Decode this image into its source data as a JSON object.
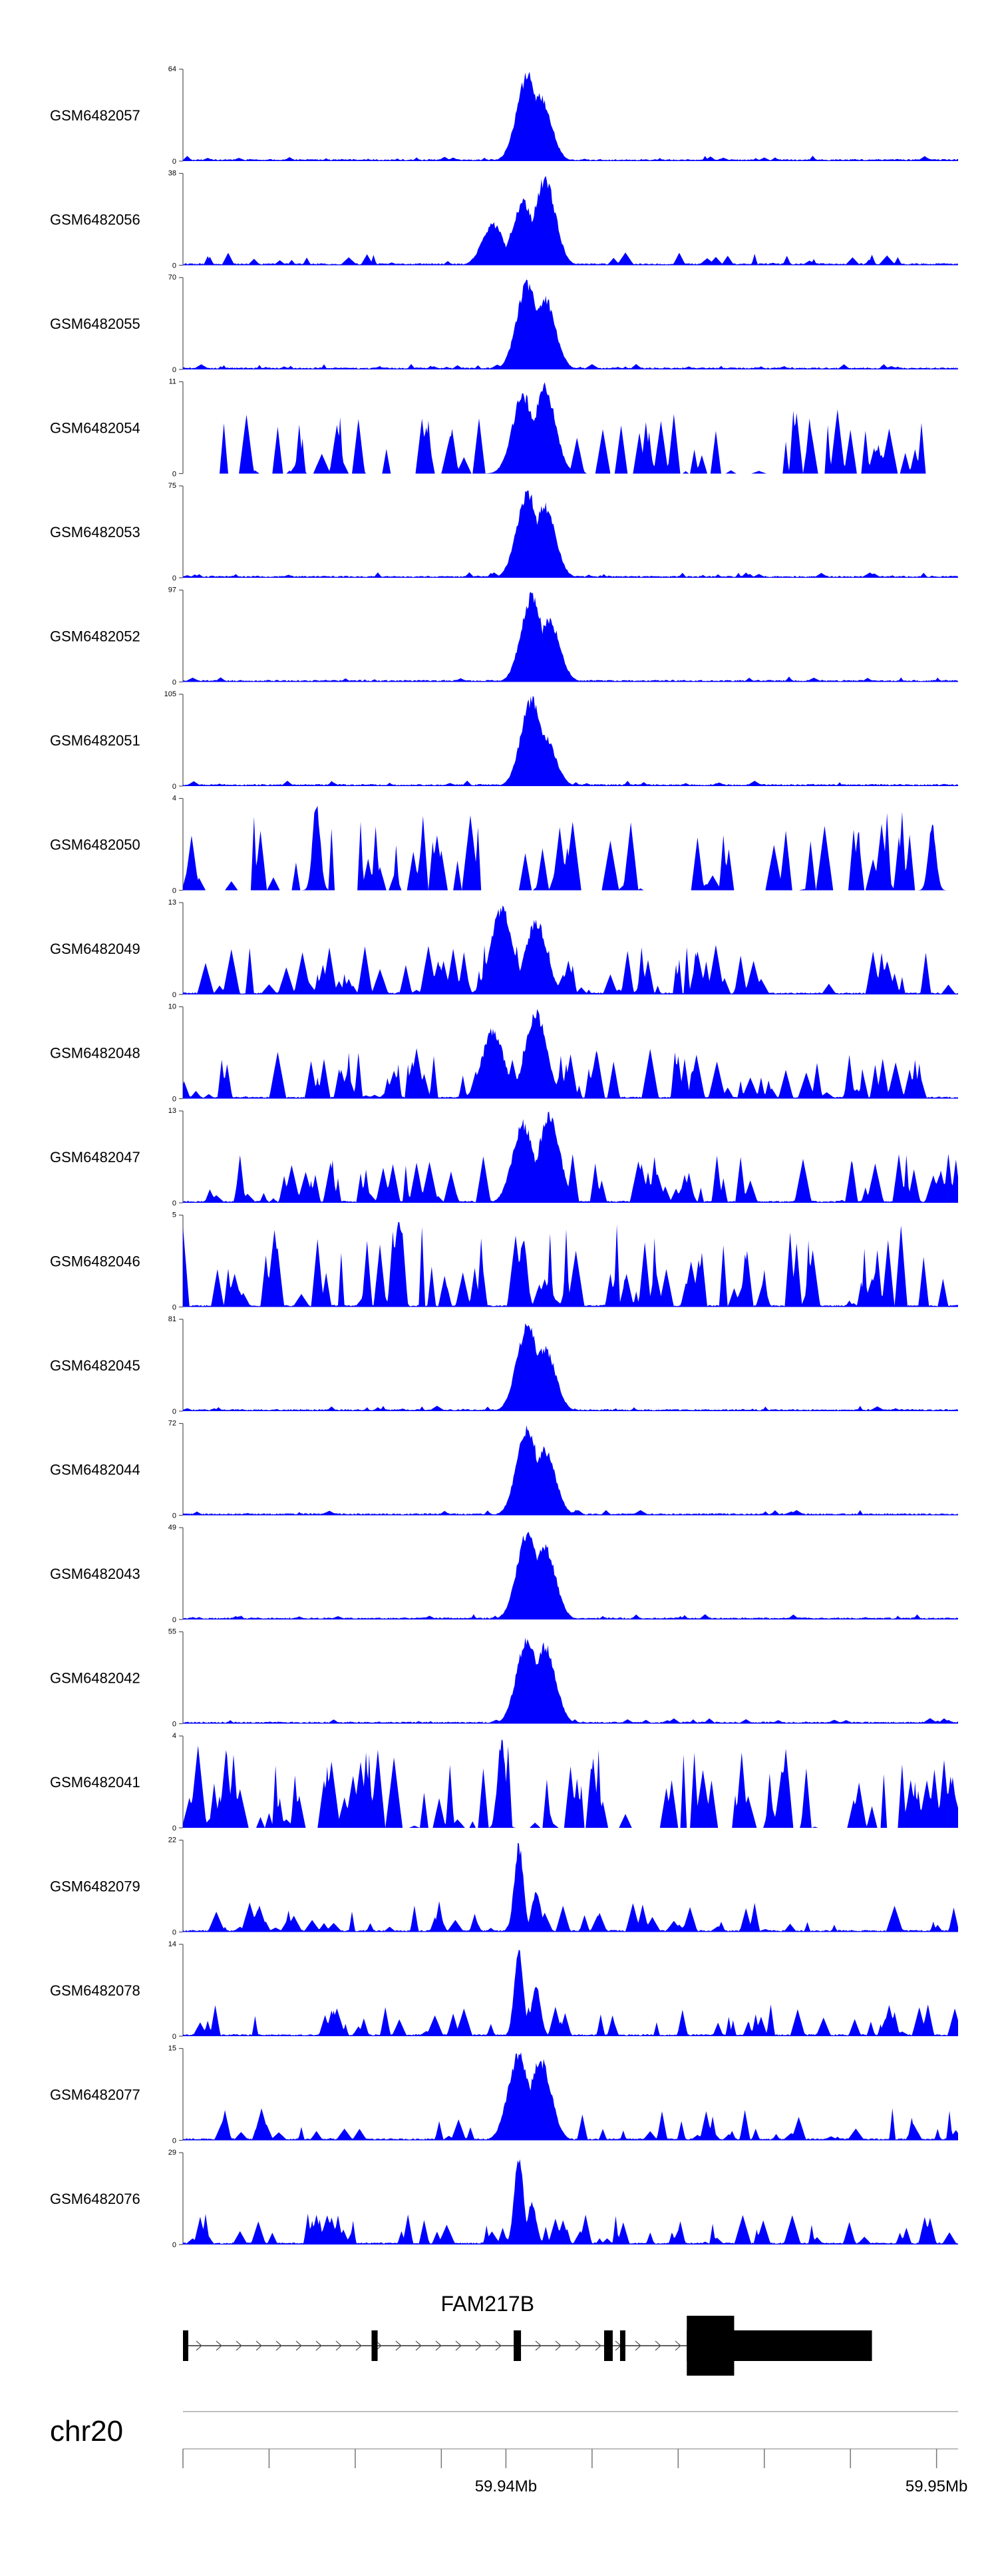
{
  "chart_data": {
    "type": "area",
    "title": "",
    "chromosome": "chr20",
    "x_range_mb": [
      59.9325,
      59.9505
    ],
    "colors": {
      "signal": "#0000ff",
      "axis": "#555555",
      "gene": "#000000"
    },
    "tracks": [
      {
        "name": "GSM6482057",
        "ymax": 64,
        "ymin": 0,
        "profile": "peak",
        "peaks": [
          [
            59.9405,
            64
          ],
          [
            59.9408,
            48
          ]
        ]
      },
      {
        "name": "GSM6482056",
        "ymax": 38,
        "ymin": 0,
        "profile": "broad_peak",
        "peaks": [
          [
            59.9404,
            28
          ],
          [
            59.9409,
            38
          ],
          [
            59.9397,
            18
          ]
        ]
      },
      {
        "name": "GSM6482055",
        "ymax": 70,
        "ymin": 0,
        "profile": "peak",
        "peaks": [
          [
            59.9405,
            70
          ],
          [
            59.9409,
            58
          ]
        ]
      },
      {
        "name": "GSM6482054",
        "ymax": 11,
        "ymin": 0,
        "profile": "spiky_peak",
        "peaks": [
          [
            59.9404,
            10
          ],
          [
            59.9409,
            11
          ]
        ]
      },
      {
        "name": "GSM6482053",
        "ymax": 75,
        "ymin": 0,
        "profile": "peak",
        "peaks": [
          [
            59.9405,
            75
          ],
          [
            59.9409,
            62
          ]
        ]
      },
      {
        "name": "GSM6482052",
        "ymax": 97,
        "ymin": 0,
        "profile": "peak",
        "peaks": [
          [
            59.9406,
            97
          ],
          [
            59.941,
            70
          ]
        ]
      },
      {
        "name": "GSM6482051",
        "ymax": 105,
        "ymin": 0,
        "profile": "peak",
        "peaks": [
          [
            59.9406,
            105
          ],
          [
            59.9409,
            60
          ]
        ]
      },
      {
        "name": "GSM6482050",
        "ymax": 4,
        "ymin": 0,
        "profile": "sparse",
        "peaks": [
          [
            59.9356,
            4
          ],
          [
            59.9499,
            3
          ]
        ]
      },
      {
        "name": "GSM6482049",
        "ymax": 13,
        "ymin": 0,
        "profile": "noisy_peak",
        "peaks": [
          [
            59.9399,
            13
          ],
          [
            59.9407,
            11
          ]
        ]
      },
      {
        "name": "GSM6482048",
        "ymax": 10,
        "ymin": 0,
        "profile": "noisy_peak",
        "peaks": [
          [
            59.9397,
            8
          ],
          [
            59.9407,
            10
          ]
        ]
      },
      {
        "name": "GSM6482047",
        "ymax": 13,
        "ymin": 0,
        "profile": "noisy_peak",
        "peaks": [
          [
            59.9404,
            12
          ],
          [
            59.941,
            13
          ]
        ]
      },
      {
        "name": "GSM6482046",
        "ymax": 5,
        "ymin": 0,
        "profile": "noisy",
        "peaks": [
          [
            59.9375,
            5
          ],
          [
            59.9404,
            4
          ]
        ]
      },
      {
        "name": "GSM6482045",
        "ymax": 81,
        "ymin": 0,
        "profile": "peak",
        "peaks": [
          [
            59.9405,
            81
          ],
          [
            59.9409,
            60
          ]
        ]
      },
      {
        "name": "GSM6482044",
        "ymax": 72,
        "ymin": 0,
        "profile": "peak",
        "peaks": [
          [
            59.9405,
            72
          ],
          [
            59.9409,
            55
          ]
        ]
      },
      {
        "name": "GSM6482043",
        "ymax": 49,
        "ymin": 0,
        "profile": "peak",
        "peaks": [
          [
            59.9405,
            49
          ],
          [
            59.9409,
            42
          ]
        ]
      },
      {
        "name": "GSM6482042",
        "ymax": 55,
        "ymin": 0,
        "profile": "peak",
        "peaks": [
          [
            59.9405,
            55
          ],
          [
            59.9409,
            50
          ]
        ]
      },
      {
        "name": "GSM6482041",
        "ymax": 4,
        "ymin": 0,
        "profile": "sparse_dense",
        "peaks": [
          [
            59.9399,
            4
          ]
        ]
      },
      {
        "name": "GSM6482079",
        "ymax": 22,
        "ymin": 0,
        "profile": "sharp_peak",
        "peaks": [
          [
            59.9403,
            22
          ],
          [
            59.9407,
            10
          ]
        ]
      },
      {
        "name": "GSM6482078",
        "ymax": 14,
        "ymin": 0,
        "profile": "sharp_peak",
        "peaks": [
          [
            59.9403,
            14
          ],
          [
            59.9407,
            8
          ]
        ]
      },
      {
        "name": "GSM6482077",
        "ymax": 15,
        "ymin": 0,
        "profile": "double_peak",
        "peaks": [
          [
            59.9403,
            15
          ],
          [
            59.9408,
            14
          ]
        ]
      },
      {
        "name": "GSM6482076",
        "ymax": 29,
        "ymin": 0,
        "profile": "sharp_peak",
        "peaks": [
          [
            59.9403,
            29
          ],
          [
            59.9406,
            14
          ]
        ]
      }
    ],
    "gene": {
      "name": "FAM217B",
      "strand": "+",
      "start_mb": 59.9325,
      "end_mb": 59.9485,
      "exons_mb": [
        [
          59.9325,
          59.93258
        ],
        [
          59.93688,
          59.93702
        ],
        [
          59.94018,
          59.94035
        ],
        [
          59.94228,
          59.94248
        ],
        [
          59.94265,
          59.94275
        ],
        [
          59.9442,
          59.9453
        ]
      ],
      "cds_mb": [
        59.9453,
        59.9485
      ]
    },
    "axis": {
      "label": "chr20",
      "ticks_mb": [
        59.9325,
        59.9345,
        59.9365,
        59.9385,
        59.94,
        59.942,
        59.944,
        59.946,
        59.948,
        59.95
      ],
      "labeled_ticks": [
        {
          "mb": 59.94,
          "label": "59.94Mb"
        },
        {
          "mb": 59.95,
          "label": "59.95Mb"
        }
      ]
    }
  }
}
